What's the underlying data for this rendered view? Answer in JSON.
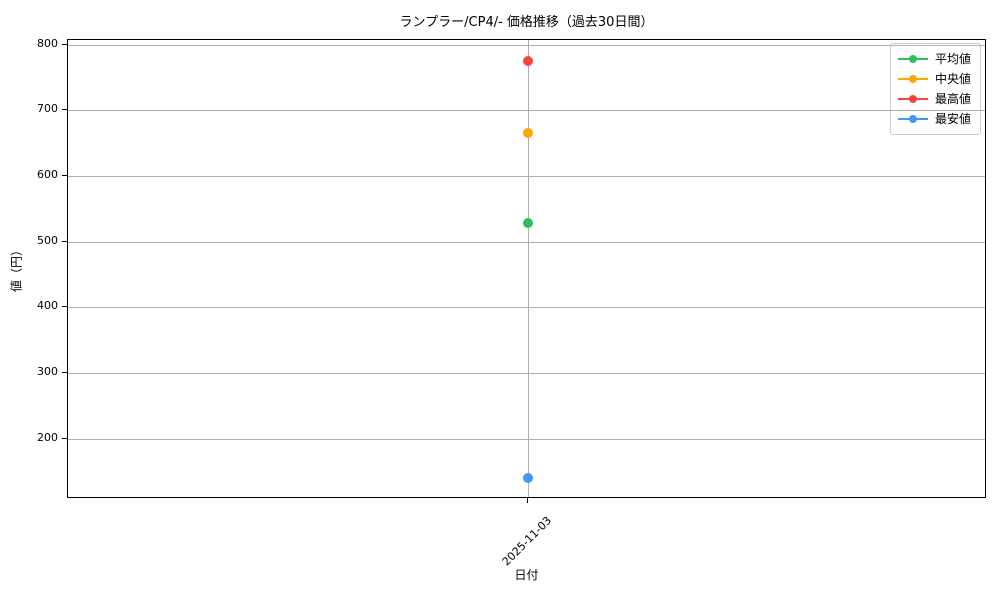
{
  "chart_data": {
    "type": "line",
    "title": "ランプラー/CP4/- 価格推移（過去30日間）",
    "xlabel": "日付",
    "ylabel": "値（円）",
    "x": [
      "2025-11-03"
    ],
    "series": [
      {
        "name": "平均値",
        "color": "#2ebd5f",
        "values": [
          528
        ]
      },
      {
        "name": "中央値",
        "color": "#ffa500",
        "values": [
          665
        ]
      },
      {
        "name": "最高値",
        "color": "#f4463c",
        "values": [
          775
        ]
      },
      {
        "name": "最安値",
        "color": "#4197f5",
        "values": [
          140
        ]
      }
    ],
    "ylim": [
      108,
      807
    ],
    "yticks": [
      800,
      700,
      600,
      500,
      400,
      300,
      200
    ],
    "grid": true,
    "legend_position": "upper right",
    "grid_color": "#b0b0b0",
    "spine_color": "#000000",
    "background_color": "#ffffff",
    "text_color": "#000000"
  }
}
